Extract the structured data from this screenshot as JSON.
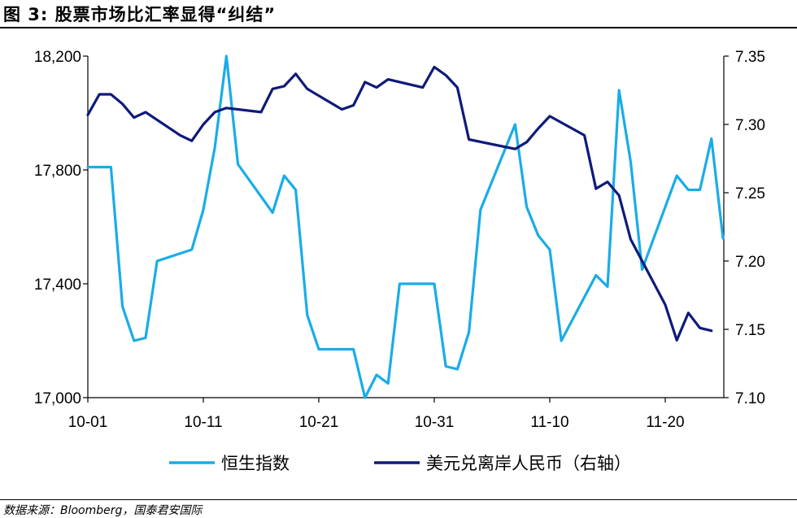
{
  "title": "图 3:  股票市场比汇率显得“纠结”",
  "source": "数据来源：Bloomberg，国泰君安国际",
  "colors": {
    "series1": "#19ACE8",
    "series2": "#0E1A7A"
  },
  "chart_data": {
    "type": "line",
    "x_tick_labels": [
      "10-01",
      "10-11",
      "10-21",
      "10-31",
      "11-10",
      "11-20"
    ],
    "x": [
      "10-01",
      "10-02",
      "10-03",
      "10-04",
      "10-05",
      "10-06",
      "10-07",
      "10-08",
      "10-09",
      "10-10",
      "10-11",
      "10-12",
      "10-13",
      "10-14",
      "10-15",
      "10-16",
      "10-17",
      "10-18",
      "10-19",
      "10-20",
      "10-21",
      "10-22",
      "10-23",
      "10-24",
      "10-25",
      "10-26",
      "10-27",
      "10-28",
      "10-29",
      "10-30",
      "10-31",
      "11-01",
      "11-02",
      "11-03",
      "11-04",
      "11-05",
      "11-06",
      "11-07",
      "11-08",
      "11-09",
      "11-10",
      "11-11",
      "11-12",
      "11-13",
      "11-14",
      "11-15",
      "11-16",
      "11-17",
      "11-18",
      "11-19",
      "11-20",
      "11-21",
      "11-22",
      "11-23",
      "11-24",
      "11-25"
    ],
    "y_left_ticks": [
      "17,000",
      "17,400",
      "17,800",
      "18,200"
    ],
    "y_left_range": [
      17000,
      18200
    ],
    "y_right_ticks": [
      "7.10",
      "7.15",
      "7.20",
      "7.25",
      "7.30",
      "7.35"
    ],
    "y_right_range": [
      7.1,
      7.35
    ],
    "series": [
      {
        "name": "恒生指数",
        "axis": "left",
        "values": [
          17810,
          null,
          17810,
          17320,
          17200,
          17210,
          17480,
          null,
          null,
          17520,
          17660,
          17880,
          18200,
          17820,
          null,
          null,
          17650,
          17780,
          17730,
          17290,
          17170,
          null,
          null,
          17170,
          17000,
          17080,
          17050,
          17400,
          null,
          null,
          17400,
          17110,
          17100,
          17230,
          17660,
          null,
          null,
          17960,
          17670,
          17570,
          17520,
          17200,
          null,
          null,
          17430,
          17390,
          18080,
          17830,
          17450,
          null,
          null,
          17780,
          17730,
          17730,
          17910,
          17560
        ]
      },
      {
        "name": "美元兑离岸人民币（右轴）",
        "axis": "right",
        "values": [
          7.307,
          7.322,
          7.322,
          7.315,
          7.305,
          7.309,
          null,
          null,
          7.292,
          7.288,
          7.3,
          7.309,
          7.312,
          null,
          null,
          7.309,
          7.326,
          7.328,
          7.337,
          7.326,
          null,
          null,
          7.311,
          7.314,
          7.331,
          7.327,
          7.333,
          null,
          null,
          7.327,
          7.342,
          7.336,
          7.327,
          7.289,
          null,
          null,
          null,
          7.282,
          7.287,
          7.297,
          7.306,
          null,
          null,
          7.292,
          7.253,
          7.258,
          7.248,
          7.216,
          null,
          null,
          7.168,
          7.142,
          7.162,
          7.151,
          7.149,
          null
        ]
      }
    ],
    "legend_position": "bottom",
    "grid": false
  }
}
